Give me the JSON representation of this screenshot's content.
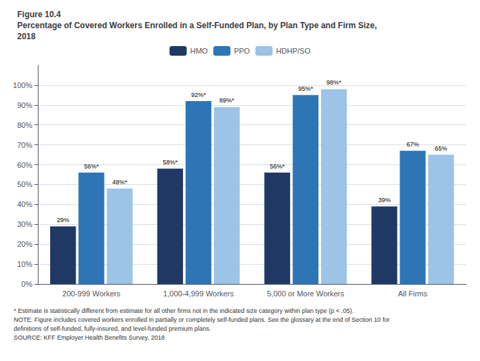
{
  "chart_data": {
    "type": "bar",
    "title": [
      "Figure 10.4",
      "Percentage of Covered Workers Enrolled in a Self-Funded Plan, by Plan Type and Firm Size,",
      "2018"
    ],
    "annotations": [
      "* Estimate is statistically different from estimate for all other firms not in the indicated size category within plan type (p < .05).",
      "NOTE: Figure includes covered workers enrolled in partially or completely self-funded plans. See the glossary at the end of Section 10 for",
      "definitions of self-funded, fully-insured, and level-funded premium plans.",
      "SOURCE: KFF Employer Health Benefits Survey, 2018"
    ],
    "categories": [
      "200-999 Workers",
      "1,000-4,999 Workers",
      "5,000 or More Workers",
      "All Firms"
    ],
    "series": [
      {
        "name": "HMO",
        "color": "#1f3864",
        "values": [
          29,
          58,
          56,
          39
        ],
        "value_labels": [
          "29%",
          "58%*",
          "56%*",
          "39%"
        ]
      },
      {
        "name": "PPO",
        "color": "#2e75b6",
        "values": [
          56,
          92,
          95,
          67
        ],
        "value_labels": [
          "56%*",
          "92%*",
          "95%*",
          "67%"
        ]
      },
      {
        "name": "HDHP/SO",
        "color": "#9dc3e6",
        "values": [
          48,
          89,
          98,
          65
        ],
        "value_labels": [
          "48%*",
          "89%*",
          "98%*",
          "65%"
        ]
      }
    ],
    "ylim": [
      0,
      110
    ],
    "yticks": [
      {
        "value": 0,
        "label": "0%"
      },
      {
        "value": 10,
        "label": "10%"
      },
      {
        "value": 20,
        "label": "20%"
      },
      {
        "value": 30,
        "label": "30%"
      },
      {
        "value": 40,
        "label": "40%"
      },
      {
        "value": 50,
        "label": "50%"
      },
      {
        "value": 60,
        "label": "60%"
      },
      {
        "value": 70,
        "label": "70%"
      },
      {
        "value": 80,
        "label": "80%"
      },
      {
        "value": 90,
        "label": "90%"
      },
      {
        "value": 100,
        "label": "100%"
      }
    ],
    "grid": true,
    "legend": "top",
    "data_labels": true
  }
}
